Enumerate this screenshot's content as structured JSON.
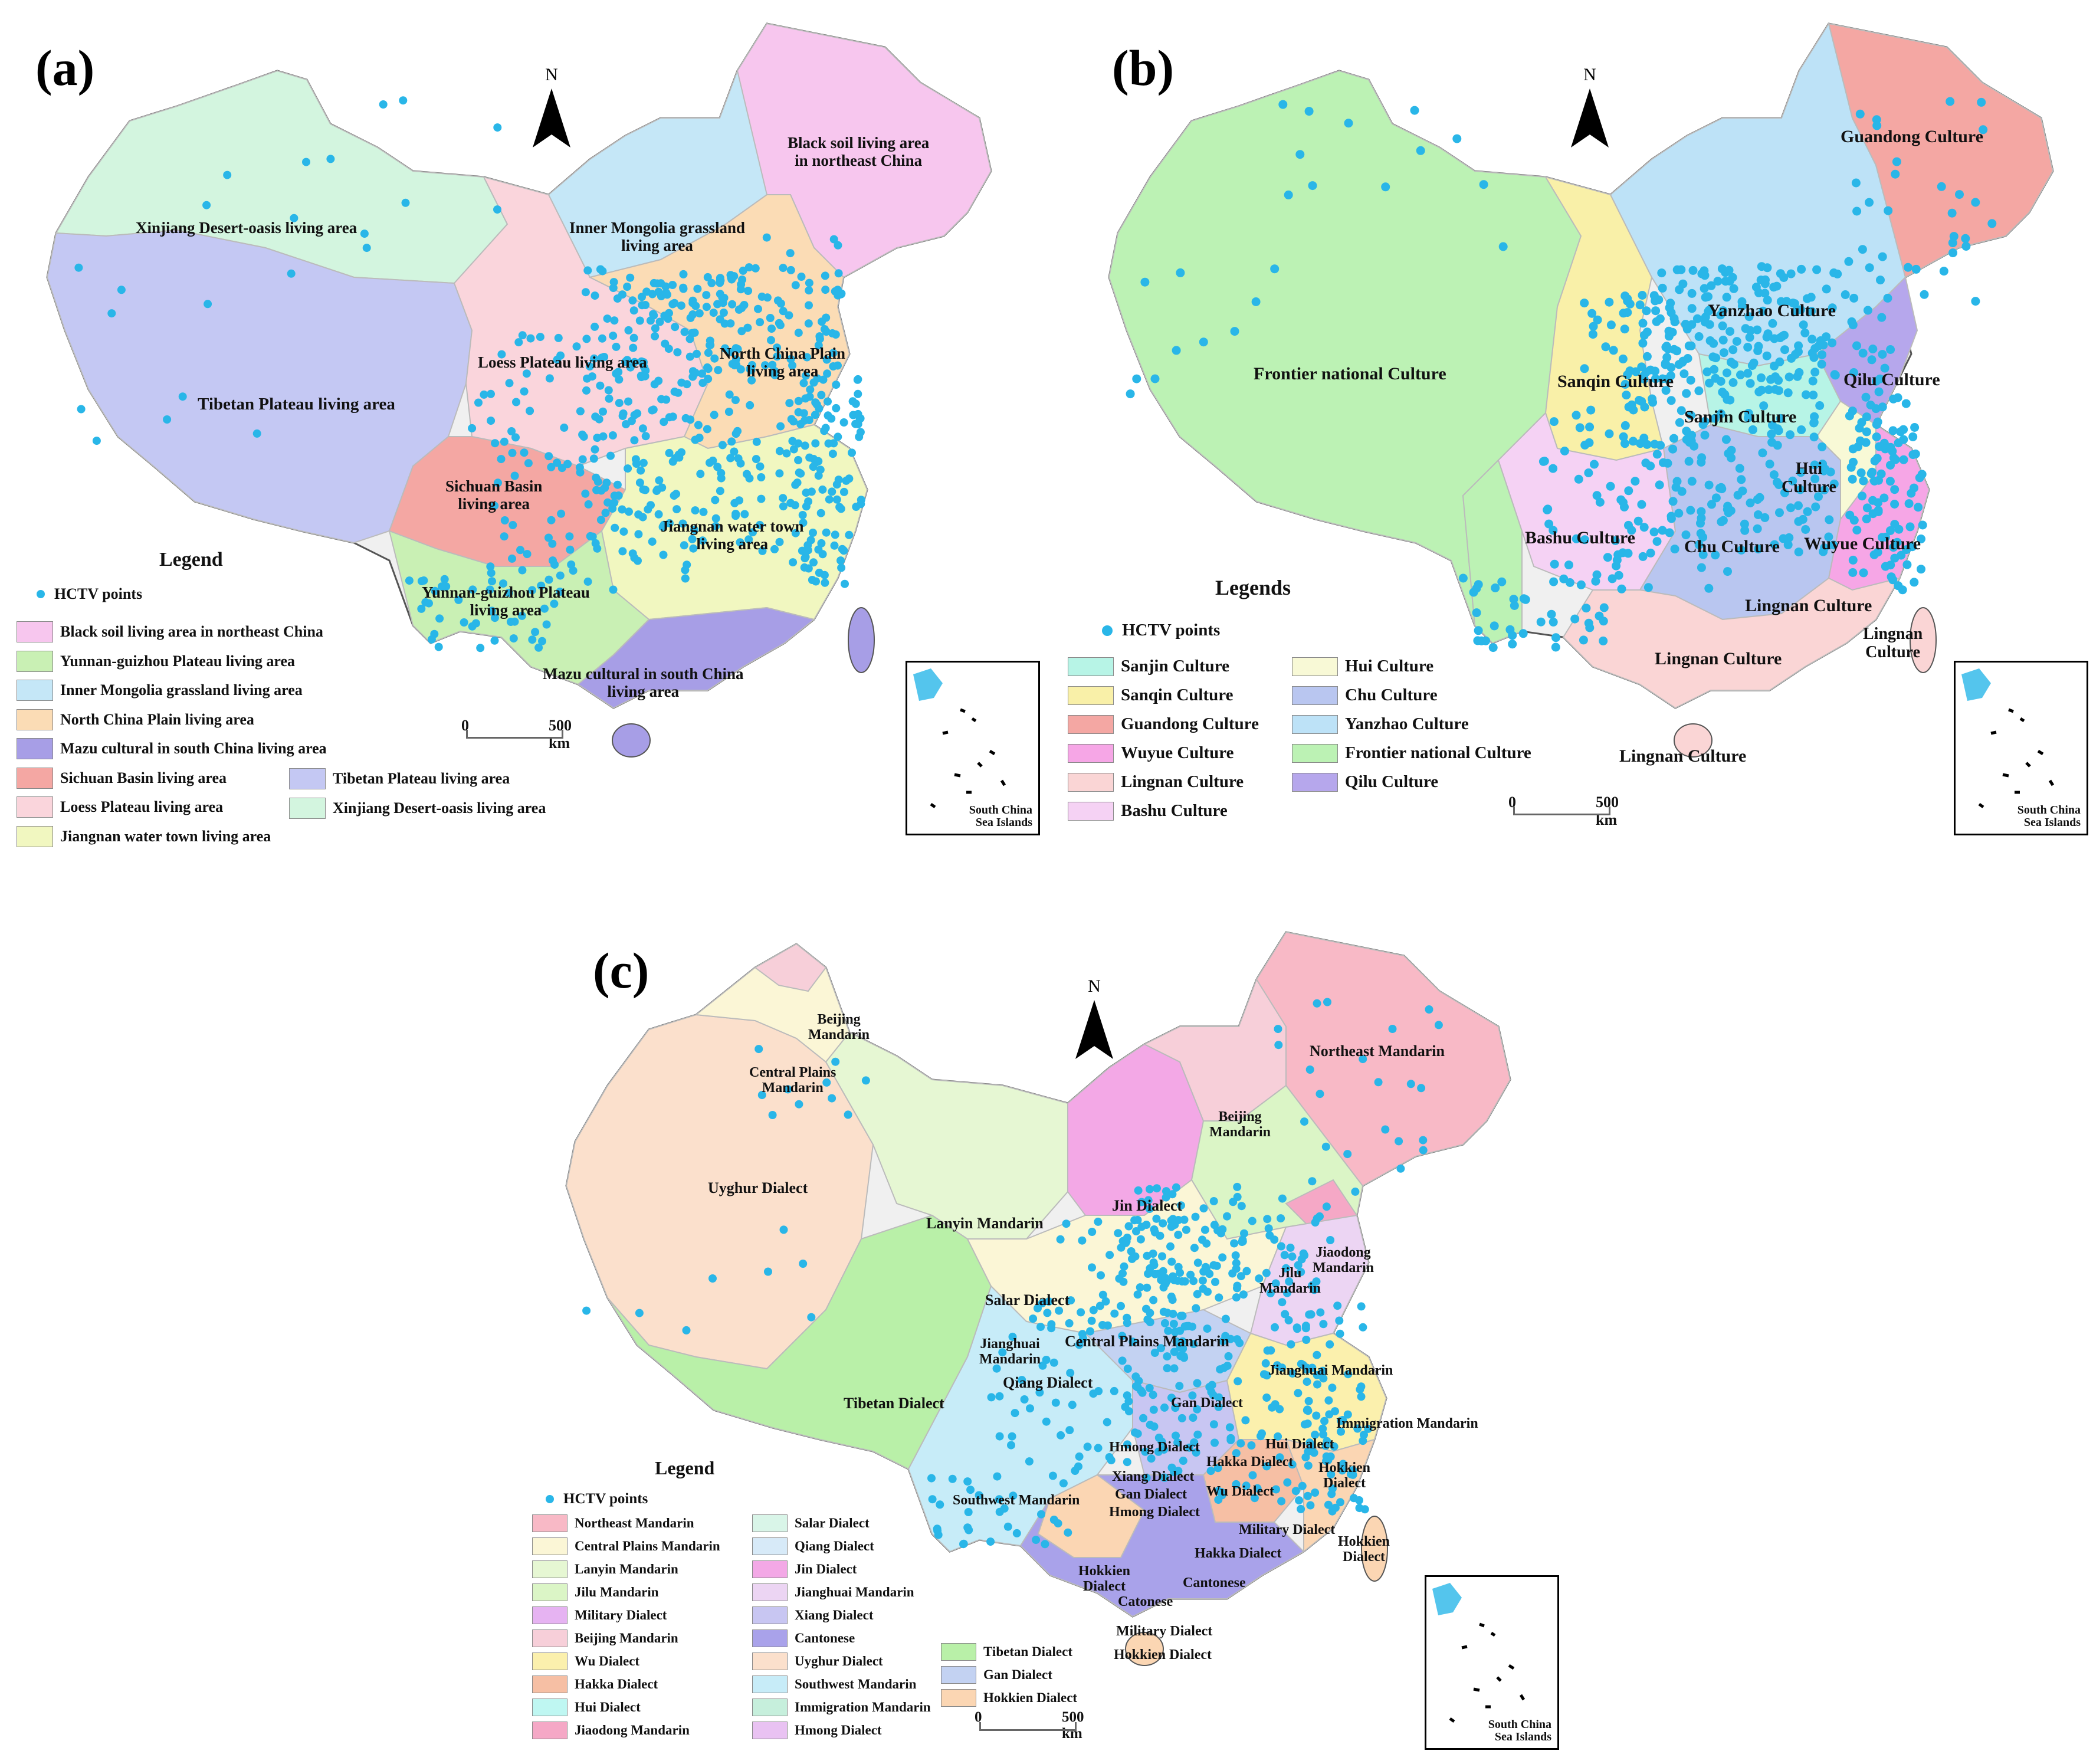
{
  "colors": {
    "hctv": "#29b6e8",
    "outline": "#555555",
    "inner_border": "#bbbbbb"
  },
  "panels": {
    "a": {
      "letter": "(a)",
      "north": "N",
      "legend_title": "Legend",
      "hctv_label": "HCTV points",
      "scale": {
        "zero": "0",
        "dist": "500 km"
      },
      "inset_label": "South China\nSea Islands",
      "region_labels": [
        "Xinjiang Desert-oasis living area",
        "Tibetan Plateau living area",
        "Loess Plateau living area",
        "Inner Mongolia grassland\nliving area",
        "Black soil living area\nin northeast China",
        "North China Plain\nliving area",
        "Sichuan Basin\nliving area",
        "Jiangnan water town\nliving area",
        "Yunnan-guizhou Plateau\nliving area",
        "Mazu cultural in south China\nliving area"
      ],
      "legend": [
        {
          "label": "Black soil living area in northeast China",
          "color": "#f7c6ee"
        },
        {
          "label": "Yunnan-guizhou Plateau living area",
          "color": "#c9f0b4"
        },
        {
          "label": "Inner Mongolia grassland living area",
          "color": "#c5e7f7"
        },
        {
          "label": "North China Plain living area",
          "color": "#fbdcb5"
        },
        {
          "label": "Mazu cultural in south China living area",
          "color": "#a79ee6"
        },
        {
          "label": "Sichuan Basin living area",
          "color": "#f4a7a3"
        },
        {
          "label": "Loess Plateau living area",
          "color": "#fad5dc"
        },
        {
          "label": "Jiangnan water town living area",
          "color": "#f1f7c0"
        },
        {
          "label": "Tibetan Plateau living area",
          "color": "#c4c8f3"
        },
        {
          "label": "Xinjiang Desert-oasis living area",
          "color": "#d3f5df"
        }
      ]
    },
    "b": {
      "letter": "(b)",
      "north": "N",
      "legend_title": "Legends",
      "hctv_label": "HCTV points",
      "scale": {
        "zero": "0",
        "dist": "500 km"
      },
      "inset_label": "South China\nSea Islands",
      "region_labels": [
        "Guandong Culture",
        "Yanzhao Culture",
        "Frontier national Culture",
        "Sanqin Culture",
        "Qilu Culture",
        "Sanjin Culture",
        "Hui\nCulture",
        "Bashu Culture",
        "Chu Culture",
        "Wuyue Culture",
        "Lingnan Culture",
        "Lingnan Culture",
        "Lingnan\nCulture",
        "Lingnan Culture"
      ],
      "legend": [
        {
          "label": "Sanjin Culture",
          "color": "#b7f4e6"
        },
        {
          "label": "Sanqin Culture",
          "color": "#f9f0a8"
        },
        {
          "label": "Guandong Culture",
          "color": "#f4a7a3"
        },
        {
          "label": "Wuyue Culture",
          "color": "#f6a6e6"
        },
        {
          "label": "Lingnan Culture",
          "color": "#fad5d5"
        },
        {
          "label": "Bashu Culture",
          "color": "#f5d2f4"
        },
        {
          "label": "Hui  Culture",
          "color": "#f8f9d6"
        },
        {
          "label": "Chu Culture",
          "color": "#b9c6f0"
        },
        {
          "label": "Yanzhao Culture",
          "color": "#bde2f7"
        },
        {
          "label": "Frontier national Culture",
          "color": "#bcf2b4"
        },
        {
          "label": "Qilu Culture",
          "color": "#b6a7ec"
        }
      ]
    },
    "c": {
      "letter": "(c)",
      "north": "N",
      "legend_title": "Legend",
      "hctv_label": "HCTV points",
      "scale": {
        "zero": "0",
        "dist": "500 km"
      },
      "inset_label": "South China\nSea Islands",
      "region_labels": [
        "Beijing\nMandarin",
        "Central Plains\nMandarin",
        "Northeast Mandarin",
        "Uyghur Dialect",
        "Beijing\nMandarin",
        "Lanyin Mandarin",
        "Jin Dialect",
        "Jiaodong\nMandarin",
        "Jilu\nMandarin",
        "Salar Dialect",
        "Central Plains Mandarin",
        "Jianghuai\nMandarin",
        "Qiang Dialect",
        "Tibetan Dialect",
        "Jianghuai Mandarin",
        "Gan Dialect",
        "Immigration Mandarin",
        "Hmong Dialect",
        "Hui Dialect",
        "Hakka Dialect",
        "Hokkien\nDialect",
        "Xiang Dialect",
        "Gan Dialect",
        "Wu Dialect",
        "Southwest Mandarin",
        "Hmong Dialect",
        "Military Dialect",
        "Hakka Dialect",
        "Hokkien\nDialect",
        "Hokkien\nDialect",
        "Cantonese",
        "Catonese",
        "Military Dialect",
        "Hokkien Dialect"
      ],
      "legend": [
        {
          "label": "Northeast Mandarin",
          "color": "#f8b9c6"
        },
        {
          "label": "Central Plains Mandarin",
          "color": "#fbf6d6"
        },
        {
          "label": "Lanyin Mandarin",
          "color": "#e6f7d3"
        },
        {
          "label": "Jilu Mandarin",
          "color": "#dbf5c6"
        },
        {
          "label": "Military Dialect",
          "color": "#e6b3f2"
        },
        {
          "label": "Beijing Mandarin",
          "color": "#f7cfd9"
        },
        {
          "label": "Wu Dialect",
          "color": "#fbf0ad"
        },
        {
          "label": "Hakka Dialect",
          "color": "#f6bfa4"
        },
        {
          "label": "Hui Dialect",
          "color": "#bff7f2"
        },
        {
          "label": "Jiaodong Mandarin",
          "color": "#f5a8c6"
        },
        {
          "label": "Salar Dialect",
          "color": "#d9f5e8"
        },
        {
          "label": "Qiang Dialect",
          "color": "#d7eaf8"
        },
        {
          "label": "Jin Dialect",
          "color": "#f3a8e6"
        },
        {
          "label": "Jianghuai Mandarin",
          "color": "#ecd5f3"
        },
        {
          "label": "Xiang Dialect",
          "color": "#c8c6f2"
        },
        {
          "label": "Cantonese",
          "color": "#a9a2ea"
        },
        {
          "label": "Uyghur Dialect",
          "color": "#fbe0cc"
        },
        {
          "label": "Southwest Mandarin",
          "color": "#c7ecf8"
        },
        {
          "label": "Immigration Mandarin",
          "color": "#c6efdc"
        },
        {
          "label": "Hmong Dialect",
          "color": "#e9c2f2"
        },
        {
          "label": "Tibetan Dialect",
          "color": "#b9f0a8"
        },
        {
          "label": "Gan Dialect",
          "color": "#c3d2f2"
        },
        {
          "label": "Hokkien Dialect",
          "color": "#fbd6b3"
        }
      ]
    }
  }
}
